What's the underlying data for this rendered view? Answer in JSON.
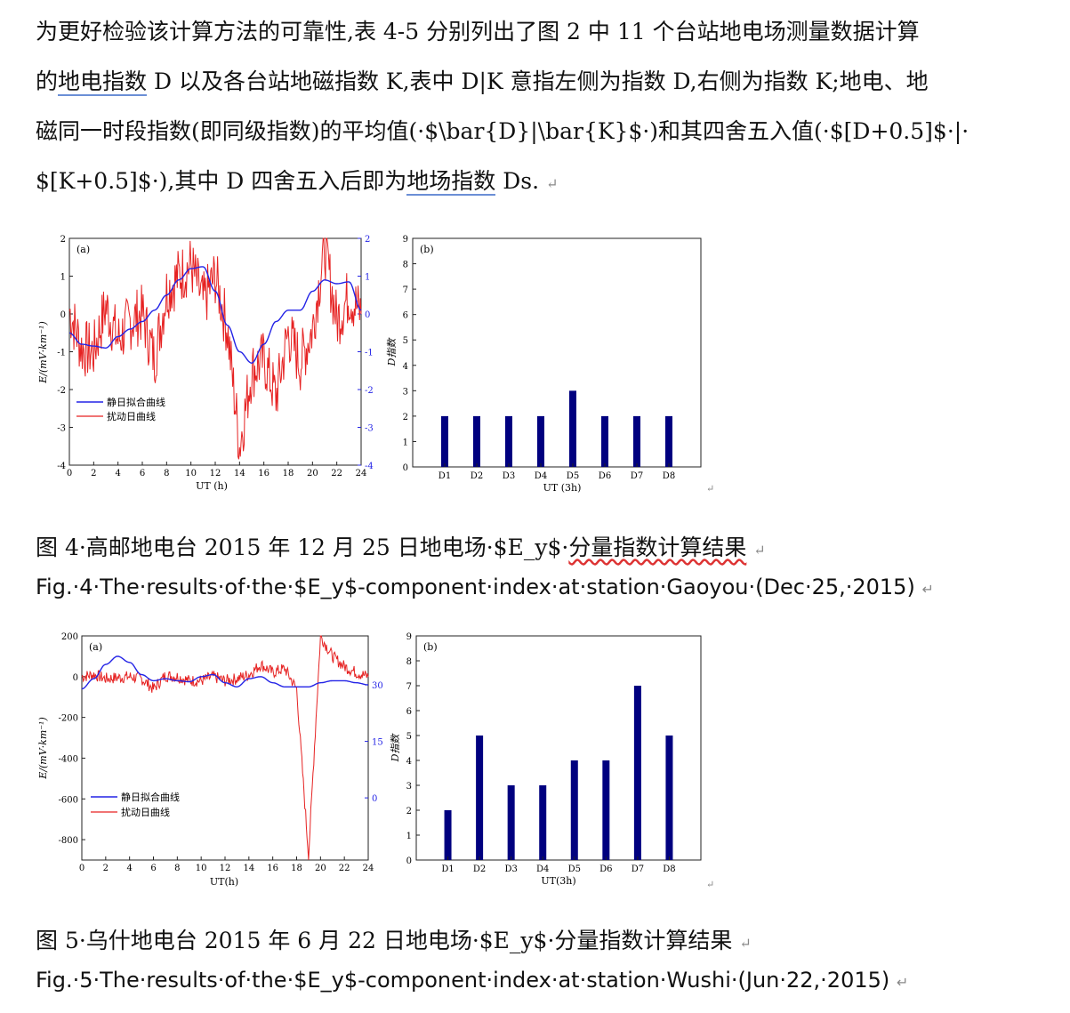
{
  "paragraph": {
    "line1": "为更好检验该计算方法的可靠性,表 4-5 分别列出了图 2 中 11 个台站地电场测量数据计算",
    "line2_pre": "的",
    "line2_ul": "地电指数",
    "line2_post": " D 以及各台站地磁指数 K,表中 D|K 意指左侧为指数 D,右侧为指数 K;地电、地",
    "line3": "磁同一时段指数(即同级指数)的平均值(·$\\bar{D}|\\bar{K}$·)和其四舍五入值(·$[D+0.5]$·|·",
    "line4_pre": "$[K+0.5]$·),其中 D 四舍五入后即为",
    "line4_ul": "地场指数",
    "line4_post": " Ds.",
    "mark": "↵"
  },
  "fig4": {
    "panel_a": {
      "label": "(a)",
      "ylabel": "E/(mV·km⁻¹)",
      "xlabel": "UT (h)",
      "x_ticks": [
        "0",
        "2",
        "4",
        "6",
        "8",
        "10",
        "12",
        "14",
        "16",
        "18",
        "20",
        "22",
        "24"
      ],
      "y_ticks_left": [
        "2",
        "1",
        "0",
        "-1",
        "-2",
        "-3",
        "-4"
      ],
      "y_ticks_right": [
        "2",
        "1",
        "0",
        "-1",
        "-2",
        "-3",
        "-4"
      ],
      "legend": [
        "静日拟合曲线",
        "扰动日曲线"
      ]
    },
    "panel_b": {
      "label": "(b)",
      "ylabel": "D指数",
      "xlabel": "UT (3h)",
      "y_ticks": [
        "0",
        "1",
        "2",
        "3",
        "4",
        "5",
        "6",
        "7",
        "8",
        "9"
      ]
    },
    "caption_cn_pre": "图 4·高邮地电台 2015 年 12 月 25 日地电场·$E_y$·",
    "caption_cn_wavy": "分量指数计算结果",
    "caption_en": "Fig.·4·The·results·of·the·$E_y$-component·index·at·station·Gaoyou·(Dec·25,·2015)"
  },
  "fig5": {
    "panel_a": {
      "label": "(a)",
      "ylabel": "E/(mV·km⁻¹)",
      "xlabel": "UT(h)",
      "x_ticks": [
        "0",
        "2",
        "4",
        "6",
        "8",
        "10",
        "12",
        "14",
        "16",
        "18",
        "20",
        "22",
        "24"
      ],
      "y_ticks_left": [
        "200",
        "0",
        "-200",
        "-400",
        "-600",
        "-800"
      ],
      "y_ticks_right": [
        "30",
        "15",
        "0"
      ],
      "legend": [
        "静日拟合曲线",
        "扰动日曲线"
      ]
    },
    "panel_b": {
      "label": "(b)",
      "ylabel": "D指数",
      "xlabel": "UT(3h)",
      "y_ticks": [
        "0",
        "1",
        "2",
        "3",
        "4",
        "5",
        "6",
        "7",
        "8",
        "9"
      ]
    },
    "caption_cn": "图 5·乌什地电台 2015 年 6 月 22 日地电场·$E_y$·分量指数计算结果",
    "caption_en": "Fig.·5·The·results·of·the·$E_y$-component·index·at·station·Wushi·(Jun·22,·2015)"
  },
  "chart_data": [
    {
      "type": "line",
      "title": "(a)",
      "xlabel": "UT (h)",
      "ylabel": "E/(mV·km⁻¹)",
      "xlim": [
        0,
        24
      ],
      "ylim": [
        -4,
        2
      ],
      "series": [
        {
          "name": "静日拟合曲线",
          "color": "#2323e6",
          "x": [
            0,
            1,
            2,
            3,
            4,
            5,
            6,
            7,
            8,
            9,
            10,
            11,
            12,
            13,
            14,
            15,
            16,
            17,
            18,
            19,
            20,
            21,
            22,
            23,
            24
          ],
          "y": [
            -0.5,
            -0.8,
            -0.85,
            -0.9,
            -0.6,
            -0.4,
            -0.2,
            0.1,
            0.5,
            0.9,
            1.2,
            1.25,
            0.6,
            -0.3,
            -1.0,
            -1.3,
            -0.8,
            -0.2,
            0.1,
            0.1,
            0.6,
            0.9,
            0.8,
            0.85,
            0.1
          ]
        },
        {
          "name": "扰动日曲线",
          "color": "#e62222",
          "x": [
            0,
            1,
            2,
            3,
            4,
            5,
            6,
            7,
            8,
            9,
            10,
            11,
            12,
            13,
            14,
            15,
            16,
            17,
            18,
            19,
            20,
            21,
            22,
            23,
            24
          ],
          "y": [
            0.1,
            -0.9,
            -1.0,
            0.2,
            -0.7,
            -0.2,
            0.0,
            -1.2,
            0.6,
            1.0,
            1.3,
            0.3,
            1.0,
            -0.4,
            -3.5,
            -1.5,
            -1.2,
            -2.2,
            -0.5,
            -1.3,
            -0.4,
            1.8,
            -0.2,
            0.5,
            0.0
          ]
        }
      ]
    },
    {
      "type": "bar",
      "title": "(b)",
      "categories": [
        "D1",
        "D2",
        "D3",
        "D4",
        "D5",
        "D6",
        "D7",
        "D8"
      ],
      "values": [
        2,
        2,
        2,
        2,
        3,
        2,
        2,
        2
      ],
      "xlabel": "UT (3h)",
      "ylabel": "D指数",
      "ylim": [
        0,
        9
      ],
      "color": "#00007f"
    },
    {
      "type": "line",
      "title": "(a)",
      "xlabel": "UT(h)",
      "ylabel": "E/(mV·km⁻¹)",
      "xlim": [
        0,
        24
      ],
      "ylim": [
        -900,
        200
      ],
      "series": [
        {
          "name": "静日拟合曲线",
          "color": "#2323e6",
          "x": [
            0,
            1,
            2,
            3,
            4,
            5,
            6,
            7,
            8,
            9,
            10,
            11,
            12,
            13,
            14,
            15,
            16,
            17,
            18,
            19,
            20,
            21,
            22,
            23,
            24
          ],
          "y": [
            -60,
            -10,
            60,
            100,
            70,
            10,
            -20,
            -10,
            -20,
            -25,
            0,
            10,
            -30,
            -50,
            -10,
            0,
            -30,
            -50,
            -50,
            -50,
            -30,
            -20,
            -20,
            -30,
            -40
          ]
        },
        {
          "name": "扰动日曲线",
          "color": "#e62222",
          "x": [
            0,
            1,
            2,
            3,
            4,
            5,
            6,
            7,
            8,
            9,
            10,
            11,
            12,
            13,
            14,
            15,
            16,
            17,
            18,
            19,
            20,
            21,
            22,
            23,
            24
          ],
          "y": [
            0,
            10,
            -10,
            -5,
            0,
            -10,
            -60,
            5,
            0,
            -20,
            -20,
            0,
            -20,
            -10,
            10,
            60,
            20,
            40,
            -60,
            -880,
            200,
            100,
            50,
            20,
            0
          ]
        }
      ]
    },
    {
      "type": "bar",
      "title": "(b)",
      "categories": [
        "D1",
        "D2",
        "D3",
        "D4",
        "D5",
        "D6",
        "D7",
        "D8"
      ],
      "values": [
        2,
        5,
        3,
        3,
        4,
        4,
        7,
        5
      ],
      "xlabel": "UT(3h)",
      "ylabel": "D指数",
      "ylim": [
        0,
        9
      ],
      "color": "#00007f"
    }
  ]
}
